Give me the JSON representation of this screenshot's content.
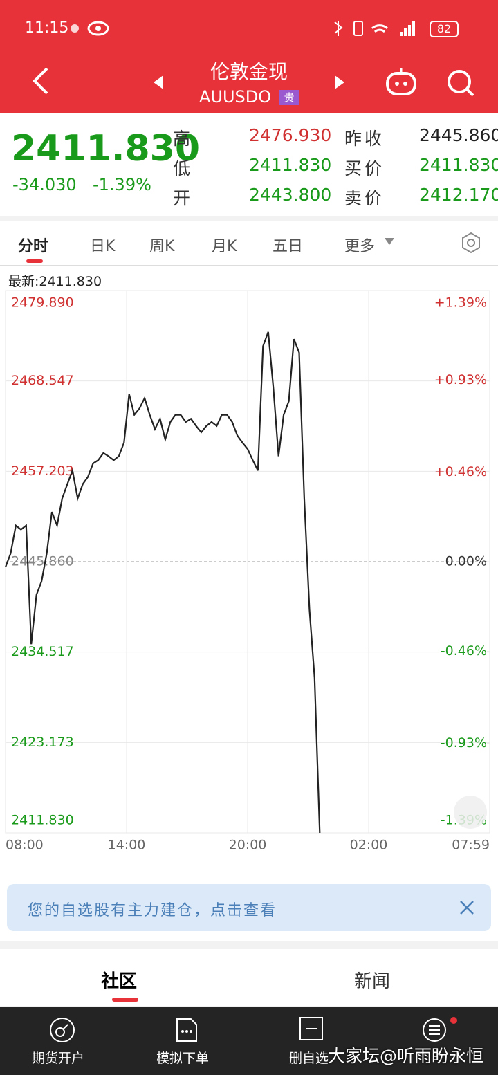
{
  "status_bar": {
    "time": "11:15",
    "battery": "82"
  },
  "header": {
    "name": "伦敦金现",
    "code": "AUUSDO",
    "badge": "贵"
  },
  "quote": {
    "price": "2411.830",
    "change": "-34.030",
    "change_pct": "-1.39%",
    "rows": [
      [
        "高",
        "2476.930",
        "昨收",
        "2445.860"
      ],
      [
        "低",
        "2411.830",
        "买价",
        "2411.830"
      ],
      [
        "开",
        "2443.800",
        "卖价",
        "2412.170"
      ]
    ]
  },
  "tabs": [
    "分时",
    "日K",
    "周K",
    "月K",
    "五日",
    "更多"
  ],
  "latest": "最新:2411.830",
  "chart_data": {
    "type": "line",
    "color": "#222222",
    "prev_close": 2445.86,
    "ylim": [
      2411.83,
      2479.89
    ],
    "yticks": [
      {
        "value": 2479.89,
        "label": "2479.890"
      },
      2468.547,
      2457.203,
      {
        "value": 2445.86,
        "label": "2445.860"
      },
      2434.517,
      2423.173,
      {
        "value": 2411.83,
        "label": "2411.830"
      }
    ],
    "y2lim": [
      -1.39,
      1.39
    ],
    "y2ticks": [
      {
        "value": 1.39,
        "label": "+1.39%"
      },
      {
        "value": 0.93,
        "label": "+0.93%"
      },
      {
        "value": 0.46,
        "label": "+0.46%"
      },
      {
        "value": 0,
        "label": "0.00%"
      },
      {
        "value": -0.46,
        "label": "-0.46%"
      },
      {
        "value": -0.93,
        "label": "-0.93%"
      },
      {
        "value": -1.39,
        "label": "-1.39%"
      }
    ],
    "xtick_labels": [
      "08:00",
      "14:00",
      "20:00",
      "02:00",
      "07:59"
    ],
    "values": [
      2445.2,
      2446.9,
      2450.4,
      2449.9,
      2450.4,
      2435.5,
      2441.7,
      2443.4,
      2446.9,
      2452.1,
      2450.4,
      2453.8,
      2455.6,
      2457.3,
      2453.8,
      2455.6,
      2456.5,
      2458.2,
      2458.6,
      2459.5,
      2459.1,
      2458.6,
      2459.1,
      2460.8,
      2466.9,
      2464.3,
      2465.1,
      2466.4,
      2464.3,
      2462.5,
      2463.8,
      2461.2,
      2463.4,
      2464.3,
      2464.3,
      2463.4,
      2463.8,
      2462.9,
      2462.1,
      2462.9,
      2463.4,
      2462.9,
      2464.3,
      2464.3,
      2463.4,
      2461.7,
      2460.8,
      2460.0,
      2458.6,
      2457.3,
      2472.9,
      2474.7,
      2467.7,
      2459.1,
      2464.3,
      2466.0,
      2473.8,
      2472.1,
      2453.8,
      2439.9,
      2431.3,
      2411.83,
      null,
      null,
      null,
      null,
      null,
      null,
      null,
      null,
      null,
      null,
      null,
      null,
      null,
      null,
      null,
      null,
      null,
      null,
      null,
      null,
      null,
      null,
      null,
      null,
      null,
      null,
      null,
      null,
      null,
      null,
      null,
      null,
      null
    ]
  },
  "banner": "您的自选股有主力建仓，点击查看",
  "news_tabs": [
    "社区",
    "新闻"
  ],
  "nav": [
    "期货开户",
    "模拟下单",
    "删自选"
  ],
  "watermark": "大家坛@听雨盼永恒"
}
